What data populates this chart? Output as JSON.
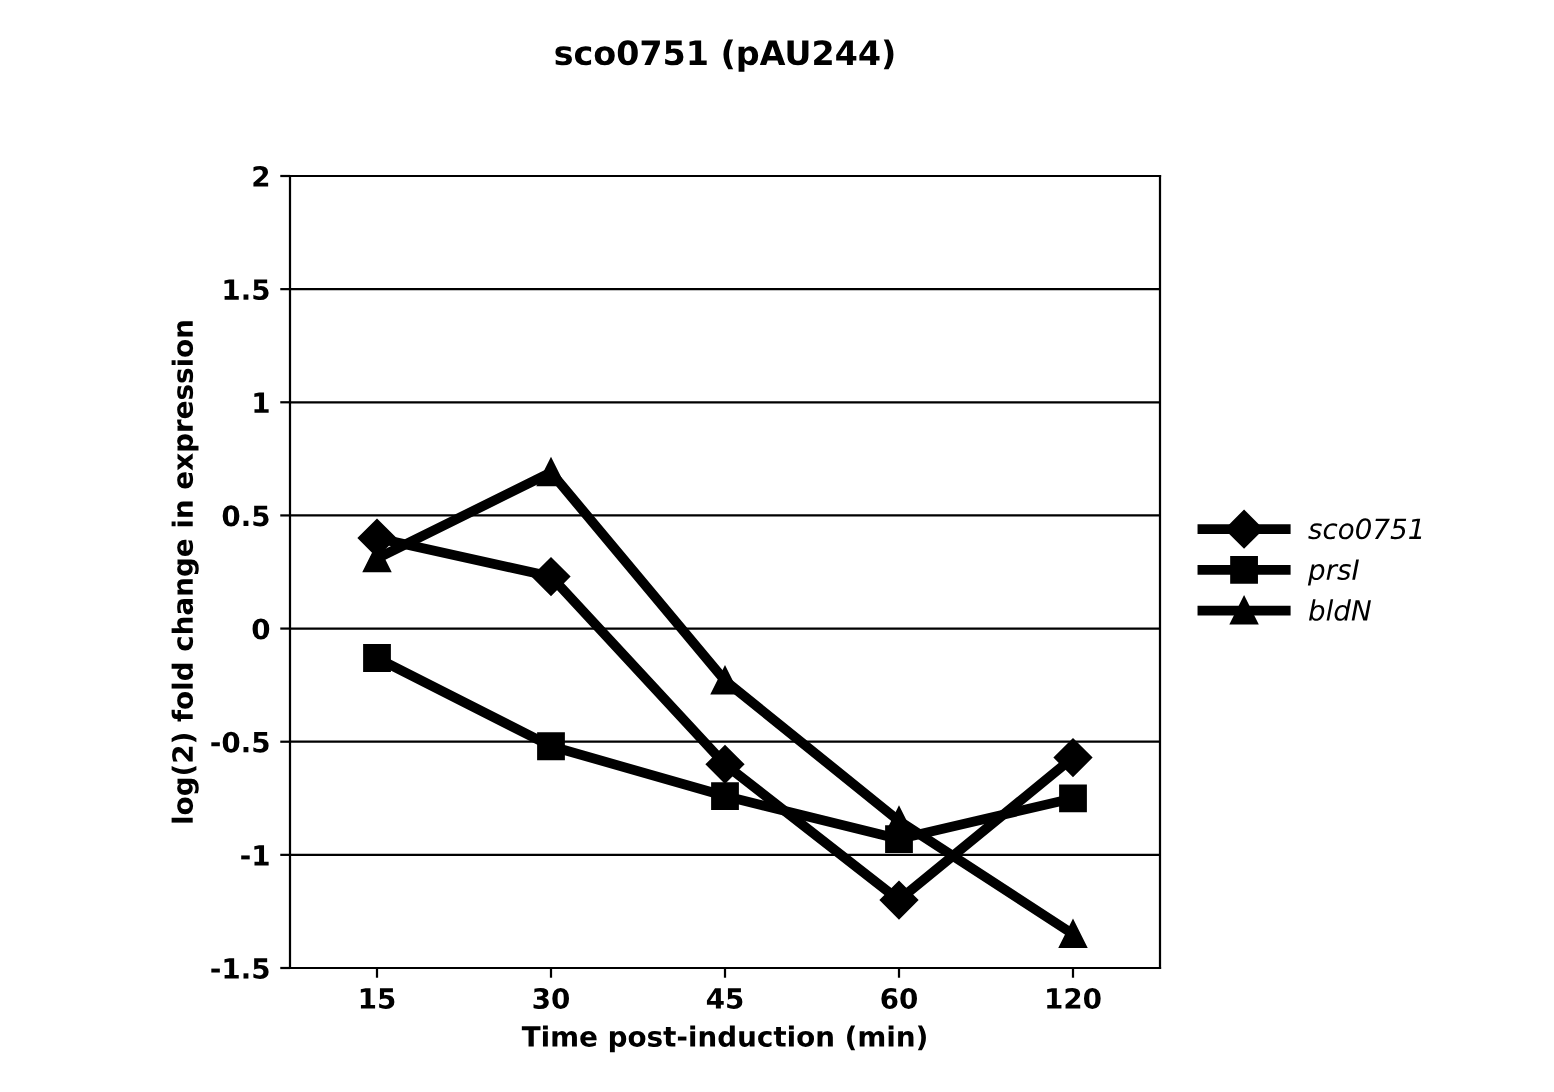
{
  "chart_data": {
    "type": "line",
    "title": "sco0751 (pAU244)",
    "xlabel": "Time post-induction (min)",
    "ylabel": "log(2) fold change in expression",
    "categories": [
      "15",
      "30",
      "45",
      "60",
      "120"
    ],
    "series": [
      {
        "name": "sco0751",
        "color": "#000000",
        "marker": "diamond",
        "values": [
          0.4,
          0.23,
          -0.6,
          -1.2,
          -0.57
        ]
      },
      {
        "name": "prsI",
        "color": "#000000",
        "marker": "square",
        "values": [
          -0.13,
          -0.52,
          -0.74,
          -0.93,
          -0.75
        ]
      },
      {
        "name": "bldN",
        "color": "#000000",
        "marker": "triangle",
        "values": [
          0.31,
          0.69,
          -0.23,
          -0.85,
          -1.35
        ]
      }
    ],
    "ylim": [
      -1.5,
      2
    ],
    "yticks": [
      -1.5,
      -1,
      -0.5,
      0,
      0.5,
      1,
      1.5,
      2
    ],
    "grid": "y",
    "legend": "right",
    "line_style": "solid"
  }
}
